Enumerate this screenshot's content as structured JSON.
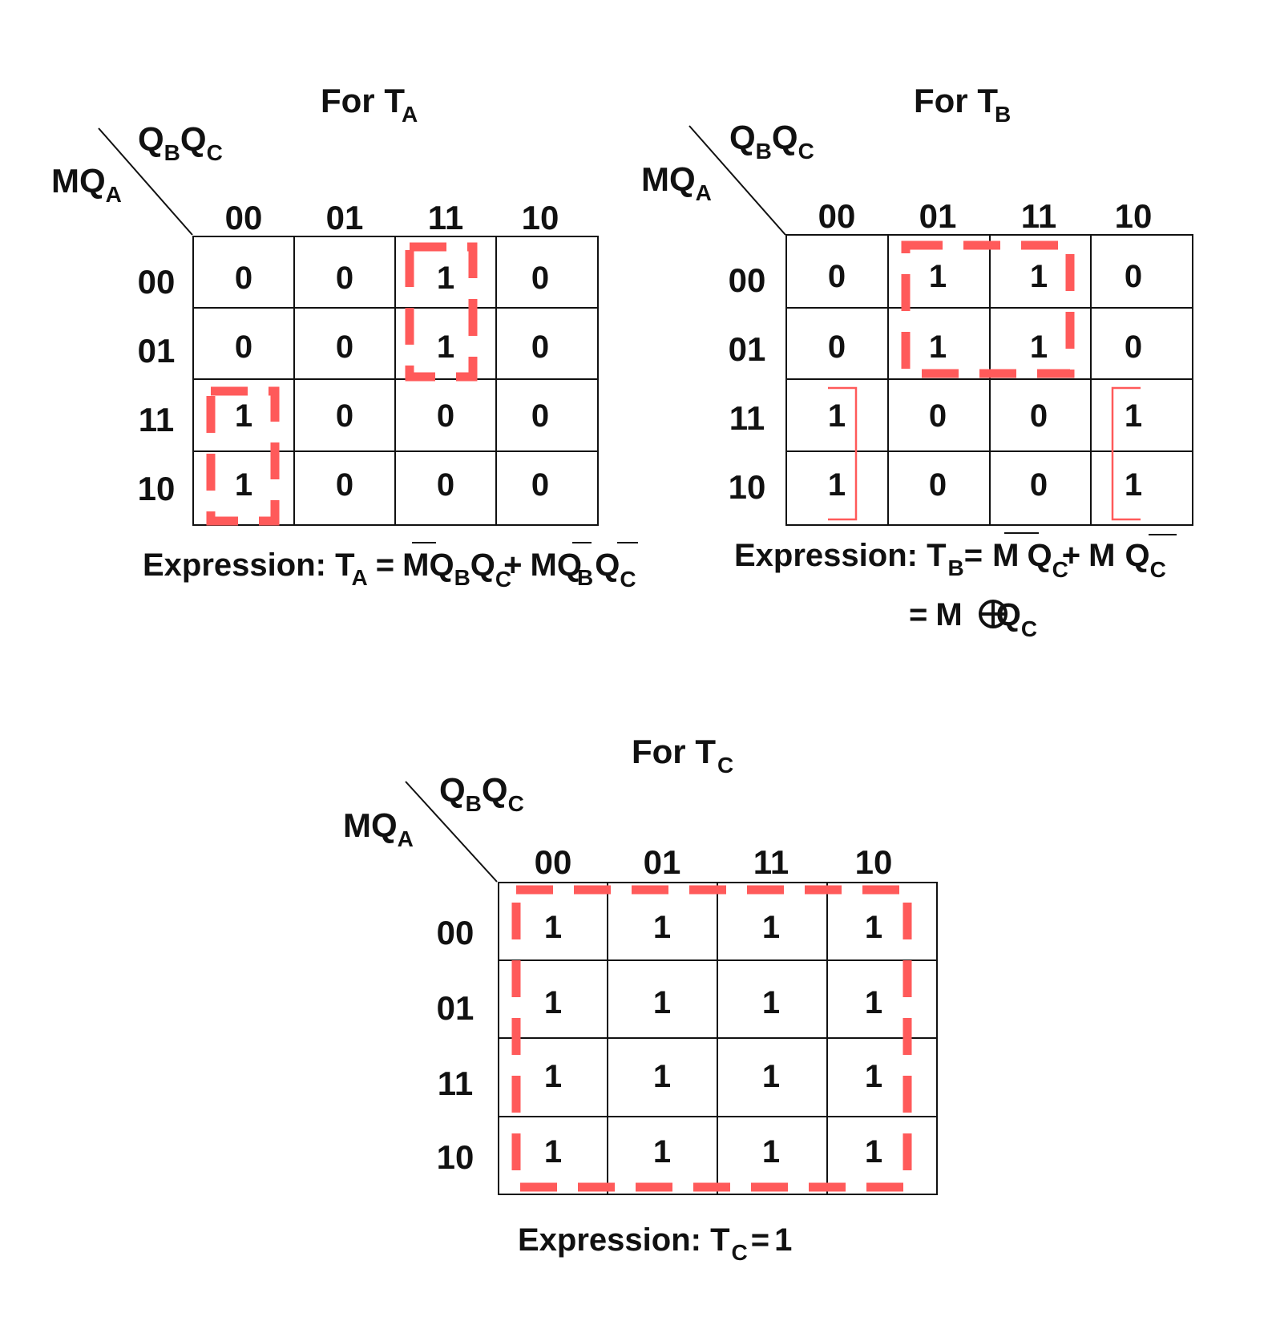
{
  "colors": {
    "group": "#FF5A5A",
    "ink": "#111111"
  },
  "maps": {
    "ta": {
      "title_main": "For T",
      "title_sub": "A",
      "col_var": "Q",
      "col_var_sub1": "B",
      "col_var2": "Q",
      "col_var_sub2": "C",
      "row_var": "MQ",
      "row_var_sub": "A",
      "cols": [
        "00",
        "01",
        "11",
        "10"
      ],
      "rows": [
        "00",
        "01",
        "11",
        "10"
      ],
      "cells": [
        [
          "0",
          "0",
          "1",
          "0"
        ],
        [
          "0",
          "0",
          "1",
          "0"
        ],
        [
          "1",
          "0",
          "0",
          "0"
        ],
        [
          "1",
          "0",
          "0",
          "0"
        ]
      ],
      "expr_prefix": "Expression: T",
      "expr_prefix_sub": "A",
      "expr_eq": "=",
      "expr_t1_m": "M",
      "expr_t1_q1": "Q",
      "expr_t1_q1_sub": "B",
      "expr_t1_q2": "Q",
      "expr_t1_q2_sub": "C",
      "expr_plus": "+",
      "expr_t2_m": "M",
      "expr_t2_q1": "Q",
      "expr_t2_q1_sub": "B",
      "expr_t2_q2": "Q",
      "expr_t2_q2_sub": "C"
    },
    "tb": {
      "title_main": "For T",
      "title_sub": "B",
      "col_var": "Q",
      "col_var_sub1": "B",
      "col_var2": "Q",
      "col_var_sub2": "C",
      "row_var": "MQ",
      "row_var_sub": "A",
      "cols": [
        "00",
        "01",
        "11",
        "10"
      ],
      "rows": [
        "00",
        "01",
        "11",
        "10"
      ],
      "cells": [
        [
          "0",
          "1",
          "1",
          "0"
        ],
        [
          "0",
          "1",
          "1",
          "0"
        ],
        [
          "1",
          "0",
          "0",
          "1"
        ],
        [
          "1",
          "0",
          "0",
          "1"
        ]
      ],
      "expr_prefix": "Expression: T",
      "expr_prefix_sub": "B",
      "expr_eq": "=",
      "expr_t1_m": "M",
      "expr_t1_q": "Q",
      "expr_t1_q_sub": "C",
      "expr_plus": "+",
      "expr_t2_m": "M",
      "expr_t2_q": "Q",
      "expr_t2_q_sub": "C",
      "expr2_eq": "=",
      "expr2_m": "M",
      "expr2_q": "Q",
      "expr2_q_sub": "C"
    },
    "tc": {
      "title_main": "For T",
      "title_sub": "C",
      "col_var": "Q",
      "col_var_sub1": "B",
      "col_var2": "Q",
      "col_var_sub2": "C",
      "row_var": "MQ",
      "row_var_sub": "A",
      "cols": [
        "00",
        "01",
        "11",
        "10"
      ],
      "rows": [
        "00",
        "01",
        "11",
        "10"
      ],
      "cells": [
        [
          "1",
          "1",
          "1",
          "1"
        ],
        [
          "1",
          "1",
          "1",
          "1"
        ],
        [
          "1",
          "1",
          "1",
          "1"
        ],
        [
          "1",
          "1",
          "1",
          "1"
        ]
      ],
      "expr_prefix": "Expression: T",
      "expr_prefix_sub": "C",
      "expr_eq": "=",
      "expr_value": "1"
    }
  }
}
